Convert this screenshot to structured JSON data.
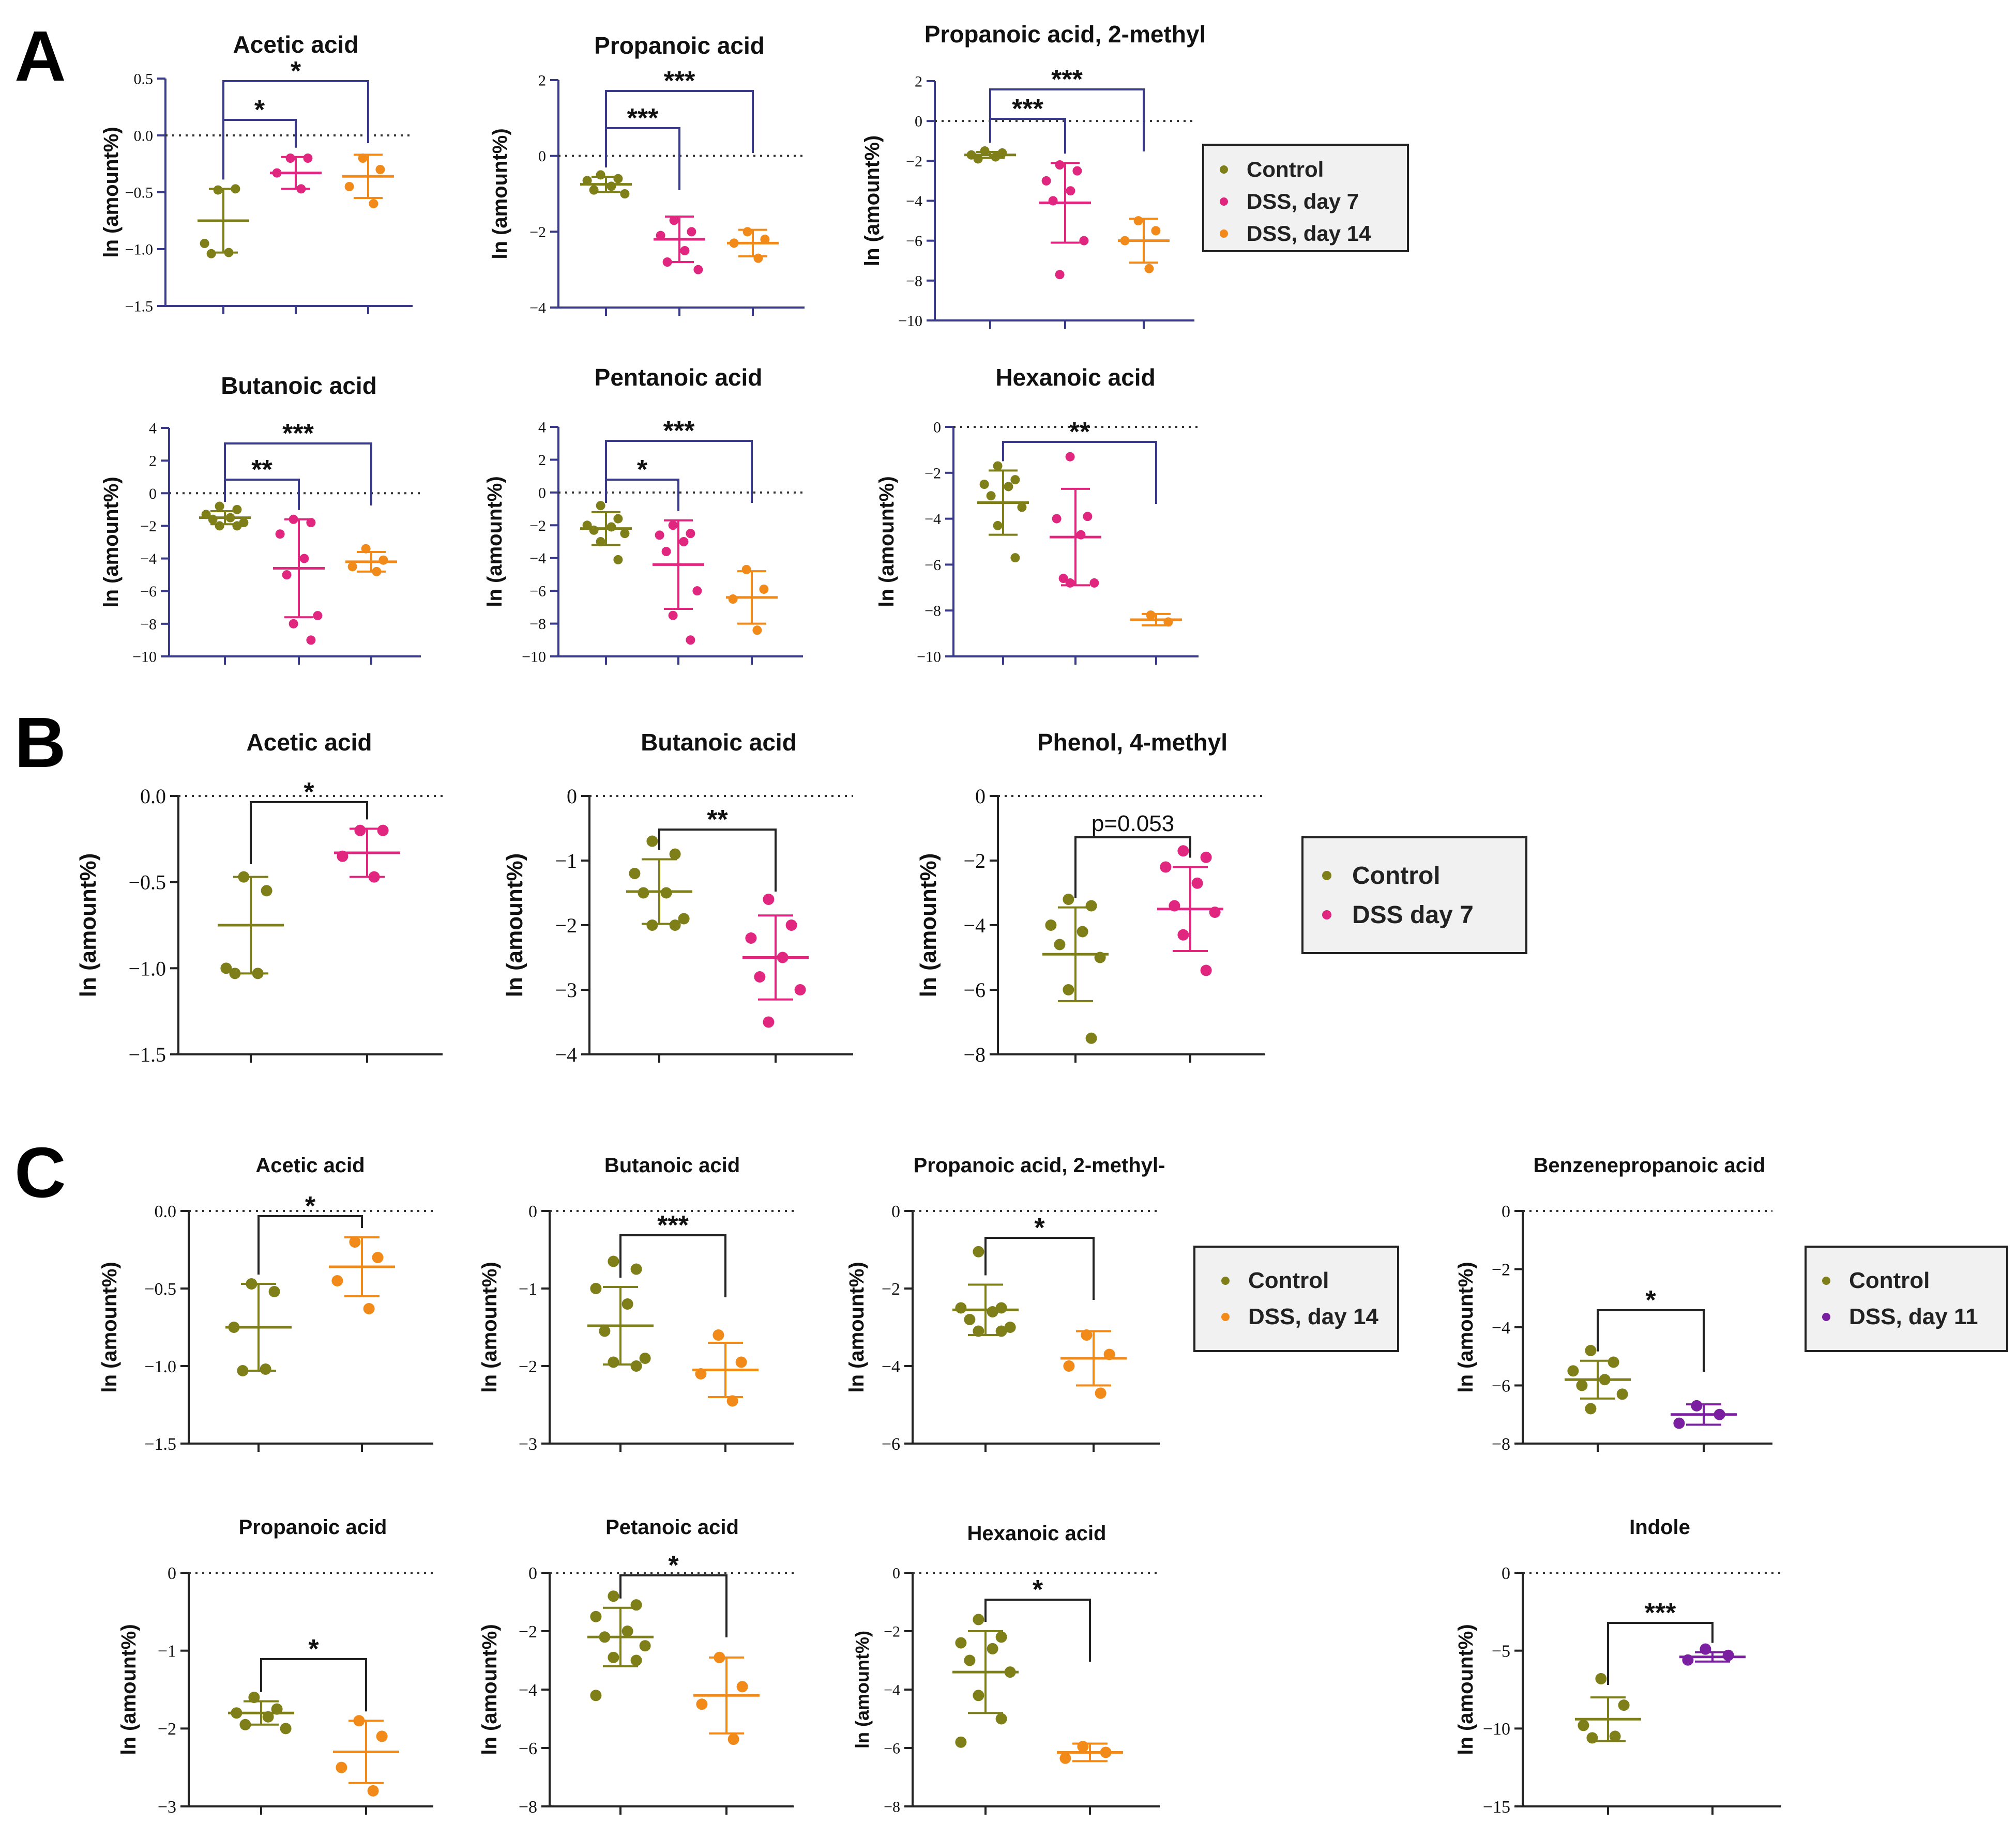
{
  "colors": {
    "control": "#7f7f19",
    "dss7": "#e0267f",
    "dss14": "#f28a1a",
    "dss11": "#7a1fa0"
  },
  "panels": [
    {
      "letter": "A",
      "legend": [
        {
          "label": "Control",
          "group": "control"
        },
        {
          "label": "DSS, day 7",
          "group": "dss7"
        },
        {
          "label": "DSS, day 14",
          "group": "dss14"
        }
      ]
    },
    {
      "letter": "B",
      "legend": [
        {
          "label": "Control",
          "group": "control"
        },
        {
          "label": "DSS day 7",
          "group": "dss7"
        }
      ]
    },
    {
      "letter": "C",
      "legend": [
        {
          "label": "Control",
          "group": "control"
        },
        {
          "label": "DSS, day 14",
          "group": "dss14"
        }
      ]
    },
    {
      "letter": "",
      "legend": [
        {
          "label": "Control",
          "group": "control"
        },
        {
          "label": "DSS, day 11",
          "group": "dss11"
        }
      ]
    }
  ],
  "chart_data": [
    {
      "type": "scatter",
      "title": "Acetic acid",
      "ylabel": "ln (amount%)",
      "ylim": [
        -1.5,
        0.5
      ],
      "yticks": [
        "0.5",
        "0.0",
        "−0.5",
        "−1.0",
        "−1.5"
      ],
      "groups": [
        {
          "name": "Control",
          "color": "control",
          "values": [
            -0.48,
            -0.47,
            -0.95,
            -1.03,
            -1.04
          ],
          "mean": -0.75,
          "sd": 0.28
        },
        {
          "name": "DSS, day 7",
          "color": "dss7",
          "values": [
            -0.2,
            -0.2,
            -0.33,
            -0.47
          ],
          "mean": -0.33,
          "sd": 0.14
        },
        {
          "name": "DSS, day 14",
          "color": "dss14",
          "values": [
            -0.2,
            -0.3,
            -0.45,
            -0.6
          ],
          "mean": -0.36,
          "sd": 0.19
        }
      ],
      "sig": [
        {
          "from": 0,
          "to": 1,
          "label": "*"
        },
        {
          "from": 0,
          "to": 2,
          "label": "*"
        }
      ]
    },
    {
      "type": "scatter",
      "title": "Propanoic acid",
      "ylabel": "ln (amount%)",
      "ylim": [
        -4,
        2
      ],
      "yticks": [
        "2",
        "0",
        "−2",
        "−4"
      ],
      "groups": [
        {
          "name": "Control",
          "color": "control",
          "values": [
            -0.5,
            -0.6,
            -0.65,
            -0.8,
            -0.9,
            -1.0
          ],
          "mean": -0.75,
          "sd": 0.2
        },
        {
          "name": "DSS, day 7",
          "color": "dss7",
          "values": [
            -1.7,
            -2.0,
            -2.1,
            -2.5,
            -2.8,
            -3.0
          ],
          "mean": -2.2,
          "sd": 0.6
        },
        {
          "name": "DSS, day 14",
          "color": "dss14",
          "values": [
            -2.0,
            -2.2,
            -2.3,
            -2.7
          ],
          "mean": -2.3,
          "sd": 0.35
        }
      ],
      "sig": [
        {
          "from": 0,
          "to": 1,
          "label": "***"
        },
        {
          "from": 0,
          "to": 2,
          "label": "***"
        }
      ]
    },
    {
      "type": "scatter",
      "title": "Propanoic acid, 2-methyl",
      "ylabel": "ln (amount%)",
      "ylim": [
        -10,
        2
      ],
      "yticks": [
        "2",
        "0",
        "−2",
        "−4",
        "−6",
        "−8",
        "−10"
      ],
      "groups": [
        {
          "name": "Control",
          "color": "control",
          "values": [
            -1.5,
            -1.6,
            -1.7,
            -1.8,
            -1.9
          ],
          "mean": -1.7,
          "sd": 0.15
        },
        {
          "name": "DSS, day 7",
          "color": "dss7",
          "values": [
            -2.2,
            -2.5,
            -3.0,
            -3.5,
            -4.0,
            -6.0,
            -7.7
          ],
          "mean": -4.1,
          "sd": 2.0
        },
        {
          "name": "DSS, day 14",
          "color": "dss14",
          "values": [
            -5.0,
            -5.5,
            -6.0,
            -7.4
          ],
          "mean": -6.0,
          "sd": 1.1
        }
      ],
      "sig": [
        {
          "from": 0,
          "to": 1,
          "label": "***"
        },
        {
          "from": 0,
          "to": 2,
          "label": "***"
        }
      ]
    },
    {
      "type": "scatter",
      "title": "Butanoic acid",
      "ylabel": "ln (amount%)",
      "ylim": [
        -10,
        4
      ],
      "yticks": [
        "4",
        "2",
        "0",
        "−2",
        "−4",
        "−6",
        "−8",
        "−10"
      ],
      "groups": [
        {
          "name": "Control",
          "color": "control",
          "values": [
            -0.8,
            -1.0,
            -1.3,
            -1.5,
            -1.6,
            -1.8,
            -2.0,
            -2.0
          ],
          "mean": -1.5,
          "sd": 0.4
        },
        {
          "name": "DSS, day 7",
          "color": "dss7",
          "values": [
            -1.6,
            -1.8,
            -2.5,
            -4.0,
            -5.0,
            -7.5,
            -8.0,
            -9.0
          ],
          "mean": -4.6,
          "sd": 3.0
        },
        {
          "name": "DSS, day 14",
          "color": "dss14",
          "values": [
            -3.4,
            -4.1,
            -4.5,
            -4.8
          ],
          "mean": -4.2,
          "sd": 0.6
        }
      ],
      "sig": [
        {
          "from": 0,
          "to": 1,
          "label": "**"
        },
        {
          "from": 0,
          "to": 2,
          "label": "***"
        }
      ]
    },
    {
      "type": "scatter",
      "title": "Pentanoic acid",
      "ylabel": "ln (amount%)",
      "ylim": [
        -10,
        4
      ],
      "yticks": [
        "4",
        "2",
        "0",
        "−2",
        "−4",
        "−6",
        "−8",
        "−10"
      ],
      "groups": [
        {
          "name": "Control",
          "color": "control",
          "values": [
            -0.8,
            -1.6,
            -2.0,
            -2.1,
            -2.3,
            -2.5,
            -3.0,
            -4.1
          ],
          "mean": -2.2,
          "sd": 1.0
        },
        {
          "name": "DSS, day 7",
          "color": "dss7",
          "values": [
            -2.0,
            -2.5,
            -2.6,
            -3.0,
            -3.6,
            -6.0,
            -7.5,
            -9.0
          ],
          "mean": -4.4,
          "sd": 2.7
        },
        {
          "name": "DSS, day 14",
          "color": "dss14",
          "values": [
            -4.7,
            -5.9,
            -6.5,
            -8.4
          ],
          "mean": -6.4,
          "sd": 1.6
        }
      ],
      "sig": [
        {
          "from": 0,
          "to": 1,
          "label": "*"
        },
        {
          "from": 0,
          "to": 2,
          "label": "***"
        }
      ]
    },
    {
      "type": "scatter",
      "title": "Hexanoic acid",
      "ylabel": "ln (amount%)",
      "ylim": [
        -10,
        0
      ],
      "yticks": [
        "0",
        "−2",
        "−4",
        "−6",
        "−8",
        "−10"
      ],
      "groups": [
        {
          "name": "Control",
          "color": "control",
          "values": [
            -1.7,
            -2.3,
            -2.5,
            -2.6,
            -3.0,
            -3.5,
            -4.3,
            -5.7
          ],
          "mean": -3.3,
          "sd": 1.4
        },
        {
          "name": "DSS, day 7",
          "color": "dss7",
          "values": [
            -1.3,
            -3.9,
            -4.0,
            -4.7,
            -6.6,
            -6.8,
            -6.8
          ],
          "mean": -4.8,
          "sd": 2.1
        },
        {
          "name": "DSS, day 14",
          "color": "dss14",
          "values": [
            -8.2,
            -8.5
          ],
          "mean": -8.4,
          "sd": 0.25
        }
      ],
      "sig": [
        {
          "from": 0,
          "to": 2,
          "label": "**"
        }
      ]
    },
    {
      "type": "scatter",
      "title": "Acetic acid",
      "ylabel": "ln (amount%)",
      "ylim": [
        -1.5,
        0.0
      ],
      "yticks": [
        "0.0",
        "−0.5",
        "−1.0",
        "−1.5"
      ],
      "groups": [
        {
          "name": "Control",
          "color": "control",
          "values": [
            -0.47,
            -0.55,
            -1.0,
            -1.03,
            -1.03
          ],
          "mean": -0.75,
          "sd": 0.28
        },
        {
          "name": "DSS day 7",
          "color": "dss7",
          "values": [
            -0.2,
            -0.2,
            -0.35,
            -0.47
          ],
          "mean": -0.33,
          "sd": 0.14
        }
      ],
      "sig": [
        {
          "from": 0,
          "to": 1,
          "label": "*"
        }
      ]
    },
    {
      "type": "scatter",
      "title": "Butanoic acid",
      "ylabel": "ln (amount%)",
      "ylim": [
        -4,
        0
      ],
      "yticks": [
        "0",
        "−1",
        "−2",
        "−3",
        "−4"
      ],
      "groups": [
        {
          "name": "Control",
          "color": "control",
          "values": [
            -0.7,
            -0.9,
            -1.2,
            -1.5,
            -1.5,
            -1.9,
            -2.0,
            -2.0
          ],
          "mean": -1.48,
          "sd": 0.5
        },
        {
          "name": "DSS day 7",
          "color": "dss7",
          "values": [
            -1.6,
            -2.0,
            -2.2,
            -2.5,
            -2.8,
            -3.0,
            -3.5
          ],
          "mean": -2.5,
          "sd": 0.65
        }
      ],
      "sig": [
        {
          "from": 0,
          "to": 1,
          "label": "**"
        }
      ]
    },
    {
      "type": "scatter",
      "title": "Phenol, 4-methyl",
      "ylabel": "ln (amount%)",
      "ylim": [
        -8,
        0
      ],
      "yticks": [
        "0",
        "−2",
        "−4",
        "−6",
        "−8"
      ],
      "groups": [
        {
          "name": "Control",
          "color": "control",
          "values": [
            -3.2,
            -3.4,
            -4.0,
            -4.2,
            -4.6,
            -5.0,
            -6.0,
            -7.5
          ],
          "mean": -4.9,
          "sd": 1.45
        },
        {
          "name": "DSS day 7",
          "color": "dss7",
          "values": [
            -1.7,
            -1.9,
            -2.2,
            -2.7,
            -3.4,
            -3.6,
            -4.3,
            -5.4
          ],
          "mean": -3.5,
          "sd": 1.3
        }
      ],
      "sig": [
        {
          "from": 0,
          "to": 1,
          "label": "p=0.053"
        }
      ]
    },
    {
      "type": "scatter",
      "title": "Acetic acid",
      "ylabel": "ln (amount%)",
      "ylim": [
        -1.5,
        0.0
      ],
      "yticks": [
        "0.0",
        "−0.5",
        "−1.0",
        "−1.5"
      ],
      "groups": [
        {
          "name": "Control",
          "color": "control",
          "values": [
            -0.47,
            -0.52,
            -0.75,
            -1.02,
            -1.03
          ],
          "mean": -0.75,
          "sd": 0.28
        },
        {
          "name": "DSS, day 14",
          "color": "dss14",
          "values": [
            -0.2,
            -0.3,
            -0.45,
            -0.63
          ],
          "mean": -0.36,
          "sd": 0.19
        }
      ],
      "sig": [
        {
          "from": 0,
          "to": 1,
          "label": "*"
        }
      ]
    },
    {
      "type": "scatter",
      "title": "Butanoic acid",
      "ylabel": "ln (amount%)",
      "ylim": [
        -3,
        0
      ],
      "yticks": [
        "0",
        "−1",
        "−2",
        "−3"
      ],
      "groups": [
        {
          "name": "Control",
          "color": "control",
          "values": [
            -0.65,
            -0.75,
            -1.0,
            -1.2,
            -1.55,
            -1.9,
            -1.95,
            -2.0
          ],
          "mean": -1.48,
          "sd": 0.5
        },
        {
          "name": "DSS, day 14",
          "color": "dss14",
          "values": [
            -1.6,
            -1.95,
            -2.1,
            -2.45
          ],
          "mean": -2.05,
          "sd": 0.35
        }
      ],
      "sig": [
        {
          "from": 0,
          "to": 1,
          "label": "***"
        }
      ]
    },
    {
      "type": "scatter",
      "title": "Propanoic acid, 2-methyl-",
      "ylabel": "ln (amount%)",
      "ylim": [
        -6,
        0
      ],
      "yticks": [
        "0",
        "−2",
        "−4",
        "−6"
      ],
      "groups": [
        {
          "name": "Control",
          "color": "control",
          "values": [
            -1.05,
            -2.5,
            -2.5,
            -2.6,
            -2.8,
            -3.0,
            -3.1,
            -3.1
          ],
          "mean": -2.55,
          "sd": 0.65
        },
        {
          "name": "DSS, day 14",
          "color": "dss14",
          "values": [
            -3.2,
            -3.7,
            -4.0,
            -4.7
          ],
          "mean": -3.8,
          "sd": 0.7
        }
      ],
      "sig": [
        {
          "from": 0,
          "to": 1,
          "label": "*"
        }
      ]
    },
    {
      "type": "scatter",
      "title": "Benzenepropanoic acid",
      "ylabel": "ln (amount%)",
      "ylim": [
        -8,
        0
      ],
      "yticks": [
        "0",
        "−2",
        "−4",
        "−6",
        "−8"
      ],
      "groups": [
        {
          "name": "Control",
          "color": "control",
          "values": [
            -4.8,
            -5.2,
            -5.5,
            -5.8,
            -6.0,
            -6.3,
            -6.8
          ],
          "mean": -5.8,
          "sd": 0.65
        },
        {
          "name": "DSS, day 11",
          "color": "dss11",
          "values": [
            -6.7,
            -7.0,
            -7.3
          ],
          "mean": -7.0,
          "sd": 0.35
        }
      ],
      "sig": [
        {
          "from": 0,
          "to": 1,
          "label": "*"
        }
      ]
    },
    {
      "type": "scatter",
      "title": "Propanoic acid",
      "ylabel": "ln (amount%)",
      "ylim": [
        -3,
        0
      ],
      "yticks": [
        "0",
        "−1",
        "−2",
        "−3"
      ],
      "groups": [
        {
          "name": "Control",
          "color": "control",
          "values": [
            -1.6,
            -1.75,
            -1.8,
            -1.85,
            -1.95,
            -2.0
          ],
          "mean": -1.8,
          "sd": 0.15
        },
        {
          "name": "DSS, day 14",
          "color": "dss14",
          "values": [
            -1.9,
            -2.1,
            -2.5,
            -2.8
          ],
          "mean": -2.3,
          "sd": 0.4
        }
      ],
      "sig": [
        {
          "from": 0,
          "to": 1,
          "label": "*"
        }
      ]
    },
    {
      "type": "scatter",
      "title": "Petanoic acid",
      "ylabel": "ln (amount%)",
      "ylim": [
        -8,
        0
      ],
      "yticks": [
        "0",
        "−2",
        "−4",
        "−6",
        "−8"
      ],
      "groups": [
        {
          "name": "Control",
          "color": "control",
          "values": [
            -0.8,
            -1.1,
            -1.5,
            -2.0,
            -2.2,
            -2.5,
            -2.9,
            -3.0,
            -4.2
          ],
          "mean": -2.2,
          "sd": 1.0
        },
        {
          "name": "DSS, day 14",
          "color": "dss14",
          "values": [
            -2.9,
            -3.9,
            -4.5,
            -5.7
          ],
          "mean": -4.2,
          "sd": 1.3
        }
      ],
      "sig": [
        {
          "from": 0,
          "to": 1,
          "label": "*"
        }
      ]
    },
    {
      "type": "scatter",
      "title": "Hexanoic acid",
      "ylabel": "ln (amount%)",
      "ylim": [
        -8,
        0
      ],
      "yticks": [
        "0",
        "−2",
        "−4",
        "−6",
        "−8"
      ],
      "groups": [
        {
          "name": "Control",
          "color": "control",
          "values": [
            -1.6,
            -2.2,
            -2.4,
            -2.6,
            -3.0,
            -3.4,
            -4.2,
            -5.0,
            -5.8
          ],
          "mean": -3.4,
          "sd": 1.4
        },
        {
          "name": "DSS, day 14",
          "color": "dss14",
          "values": [
            -5.95,
            -6.15,
            -6.35
          ],
          "mean": -6.15,
          "sd": 0.3
        }
      ],
      "sig": [
        {
          "from": 0,
          "to": 1,
          "label": "*"
        }
      ]
    },
    {
      "type": "scatter",
      "title": "Indole",
      "ylabel": "ln (amount%)",
      "ylim": [
        -15,
        0
      ],
      "yticks": [
        "0",
        "−5",
        "−10",
        "−15"
      ],
      "groups": [
        {
          "name": "Control",
          "color": "control",
          "values": [
            -6.8,
            -8.5,
            -9.8,
            -10.5,
            -10.6
          ],
          "mean": -9.4,
          "sd": 1.4
        },
        {
          "name": "DSS, day 11",
          "color": "dss11",
          "values": [
            -4.9,
            -5.3,
            -5.6
          ],
          "mean": -5.4,
          "sd": 0.3
        }
      ],
      "sig": [
        {
          "from": 0,
          "to": 1,
          "label": "***"
        }
      ]
    }
  ]
}
